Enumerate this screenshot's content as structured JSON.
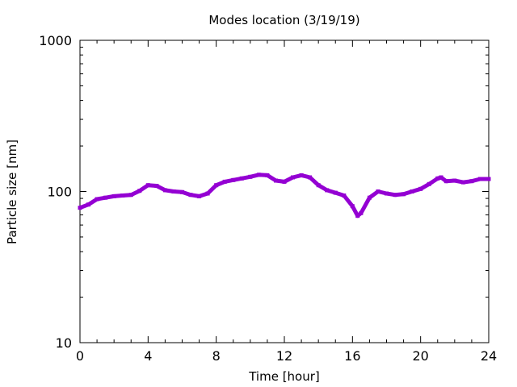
{
  "chart_data": {
    "type": "scatter",
    "title": "Modes location (3/19/19)",
    "xlabel": "Time [hour]",
    "ylabel": "Particle size [nm]",
    "xlim": [
      0,
      24
    ],
    "ylim": [
      10,
      1000
    ],
    "yscale": "log",
    "x_ticks": [
      0,
      4,
      8,
      12,
      16,
      20,
      24
    ],
    "x_tick_labels": [
      "0",
      "4",
      "8",
      "12",
      "16",
      "20",
      "24"
    ],
    "y_ticks": [
      10,
      100,
      1000
    ],
    "y_tick_labels": [
      "10",
      "100",
      "1000"
    ],
    "grid": false,
    "legend": "none",
    "marker_color": "#9400d3",
    "series": [
      {
        "x": [
          0,
          0.5,
          1,
          1.5,
          2,
          2.5,
          3,
          3.5,
          4,
          4.5,
          5,
          5.5,
          6,
          6.5,
          7,
          7.5,
          8,
          8.5,
          9,
          9.5,
          10,
          10.5,
          11,
          11.5,
          12,
          12.5,
          13,
          13.5,
          14,
          14.5,
          15,
          15.5,
          16,
          16.3,
          16.5,
          17,
          17.5,
          18,
          18.5,
          19,
          19.5,
          20,
          20.5,
          21,
          21.2,
          21.5,
          22,
          22.5,
          23,
          23.5,
          24
        ],
        "y": [
          78,
          82,
          89,
          91,
          93,
          94,
          95,
          101,
          110,
          109,
          102,
          100,
          99,
          95,
          93,
          97,
          110,
          116,
          119,
          122,
          125,
          129,
          128,
          118,
          116,
          124,
          128,
          124,
          110,
          102,
          98,
          94,
          80,
          69,
          72,
          91,
          100,
          97,
          95,
          96,
          100,
          104,
          112,
          122,
          124,
          117,
          118,
          115,
          117,
          121,
          121
        ]
      }
    ]
  }
}
